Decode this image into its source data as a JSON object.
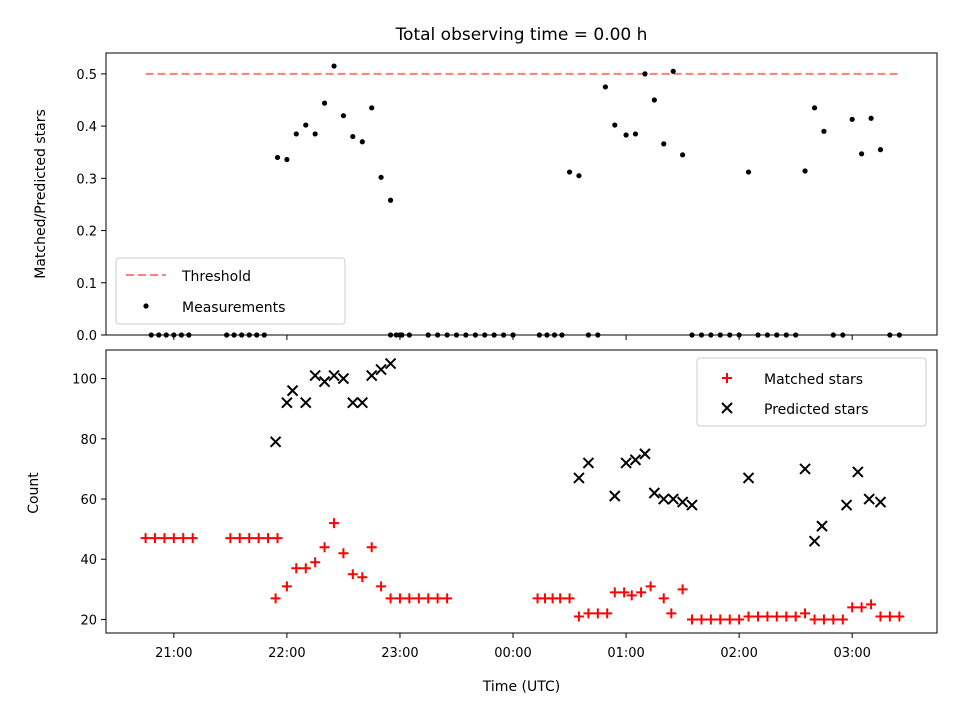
{
  "chart_data": [
    {
      "type": "scatter",
      "title": "Total observing time = 0.00 h",
      "ylabel": "Matched/Predicted stars",
      "xlabel": "",
      "ylim": [
        0,
        0.54
      ],
      "yticks": [
        0.0,
        0.1,
        0.2,
        0.3,
        0.4,
        0.5
      ],
      "ytick_labels": [
        "0.0",
        "0.1",
        "0.2",
        "0.3",
        "0.4",
        "0.5"
      ],
      "x_axis": "hours relative to 00:00 UTC",
      "xlim": [
        -3.6,
        3.75
      ],
      "legend_position": "lower-left",
      "threshold": {
        "name": "Threshold",
        "value": 0.5,
        "x": [
          -3.25,
          3.4
        ],
        "color": "#ff7f7f"
      },
      "measurements": {
        "name": "Measurements",
        "color": "#000000",
        "x": [
          -3.2,
          -3.133,
          -3.067,
          -3.0,
          -2.933,
          -2.867,
          -2.533,
          -2.467,
          -2.4,
          -2.333,
          -2.267,
          -2.2,
          -2.083,
          -2.0,
          -1.917,
          -1.833,
          -1.75,
          -1.667,
          -1.583,
          -1.5,
          -1.417,
          -1.333,
          -1.25,
          -1.167,
          -1.083,
          -1.0,
          -0.917,
          -0.983,
          -1.033,
          -1.083,
          -0.75,
          -0.667,
          -0.583,
          -0.5,
          -0.417,
          -0.333,
          -0.25,
          -0.167,
          -0.083,
          0.0,
          0.0,
          0.233,
          0.3,
          0.367,
          0.433,
          0.5,
          0.583,
          0.667,
          0.75,
          0.817,
          0.9,
          1.0,
          1.083,
          1.167,
          1.25,
          1.333,
          1.417,
          1.5,
          1.583,
          1.667,
          1.75,
          1.833,
          1.917,
          2.0,
          2.083,
          2.167,
          2.25,
          2.333,
          2.417,
          2.5,
          2.583,
          2.667,
          2.75,
          2.833,
          2.917,
          3.0,
          3.083,
          3.167,
          3.25,
          3.333,
          3.417
        ],
        "y": [
          0,
          0,
          0,
          0,
          0,
          0,
          0,
          0,
          0,
          0,
          0,
          0,
          0.34,
          0.336,
          0.385,
          0.402,
          0.385,
          0.444,
          0.515,
          0.42,
          0.38,
          0.37,
          0.435,
          0.302,
          0.258,
          0,
          0,
          0,
          0,
          0,
          0,
          0,
          0,
          0,
          0,
          0,
          0,
          0,
          0,
          0,
          0,
          0,
          0,
          0,
          0,
          0.312,
          0.305,
          0,
          0,
          0.475,
          0.402,
          0.383,
          0.385,
          0.5,
          0.45,
          0.366,
          0.505,
          0.345,
          0,
          0,
          0,
          0,
          0,
          0,
          0.312,
          0,
          0,
          0,
          0,
          0,
          0.314,
          0.435,
          0.39,
          0,
          0,
          0.413,
          0.347,
          0.415,
          0.355,
          0,
          0
        ]
      }
    },
    {
      "type": "scatter",
      "title": "",
      "xlabel": "Time (UTC)",
      "ylabel": "Count",
      "ylim": [
        15.5,
        109.5
      ],
      "yticks": [
        20,
        40,
        60,
        80,
        100
      ],
      "ytick_labels": [
        "20",
        "40",
        "60",
        "80",
        "100"
      ],
      "x_axis": "hours relative to 00:00 UTC",
      "xlim": [
        -3.6,
        3.75
      ],
      "xticks": [
        -3,
        -2,
        -1,
        0,
        1,
        2,
        3
      ],
      "xtick_labels": [
        "21:00",
        "22:00",
        "23:00",
        "00:00",
        "01:00",
        "02:00",
        "03:00"
      ],
      "legend_position": "top-right",
      "series": [
        {
          "name": "Matched stars",
          "marker": "plus",
          "color": "#ff0000",
          "x": [
            -3.25,
            -3.167,
            -3.083,
            -3.0,
            -2.917,
            -2.833,
            -2.5,
            -2.417,
            -2.333,
            -2.25,
            -2.167,
            -2.083,
            -2.1,
            -2.0,
            -1.917,
            -1.833,
            -1.75,
            -1.667,
            -1.583,
            -1.5,
            -1.417,
            -1.333,
            -1.25,
            -1.167,
            -1.083,
            -1.0,
            -0.917,
            -0.833,
            -0.75,
            -0.667,
            -0.583,
            0.217,
            0.283,
            0.35,
            0.417,
            0.5,
            0.583,
            0.667,
            0.75,
            0.833,
            0.9,
            0.983,
            1.05,
            1.133,
            1.217,
            1.333,
            1.4,
            1.5,
            1.583,
            1.667,
            1.75,
            1.833,
            1.917,
            2.0,
            2.083,
            2.167,
            2.25,
            2.333,
            2.417,
            2.5,
            2.583,
            2.667,
            2.75,
            2.833,
            2.917,
            3.0,
            3.083,
            3.167,
            3.25,
            3.333,
            3.417
          ],
          "y": [
            47,
            47,
            47,
            47,
            47,
            47,
            47,
            47,
            47,
            47,
            47,
            47,
            27,
            31,
            37,
            37,
            39,
            44,
            52,
            42,
            35,
            34,
            44,
            31,
            27,
            27,
            27,
            27,
            27,
            27,
            27,
            27,
            27,
            27,
            27,
            27,
            21,
            22,
            22,
            22,
            29,
            29,
            28,
            29,
            31,
            27,
            22,
            30,
            20,
            20,
            20,
            20,
            20,
            20,
            21,
            21,
            21,
            21,
            21,
            21,
            22,
            20,
            20,
            20,
            20,
            24,
            24,
            25,
            21,
            21,
            21
          ]
        },
        {
          "name": "Predicted stars",
          "marker": "x",
          "color": "#000000",
          "x": [
            -2.1,
            -2.0,
            -1.95,
            -1.833,
            -1.75,
            -1.667,
            -1.583,
            -1.5,
            -1.417,
            -1.333,
            -1.25,
            -1.167,
            -1.083,
            0.583,
            0.667,
            0.9,
            1.0,
            1.083,
            1.167,
            1.25,
            1.333,
            1.417,
            1.5,
            1.583,
            2.083,
            2.583,
            2.667,
            2.733,
            2.95,
            3.05,
            3.15,
            3.25
          ],
          "y": [
            79,
            92,
            96,
            92,
            101,
            99,
            101,
            100,
            92,
            92,
            101,
            103,
            105,
            67,
            72,
            61,
            72,
            73,
            75,
            62,
            60,
            60,
            59,
            58,
            67,
            70,
            46,
            51,
            58,
            69,
            60,
            59
          ]
        }
      ]
    }
  ]
}
